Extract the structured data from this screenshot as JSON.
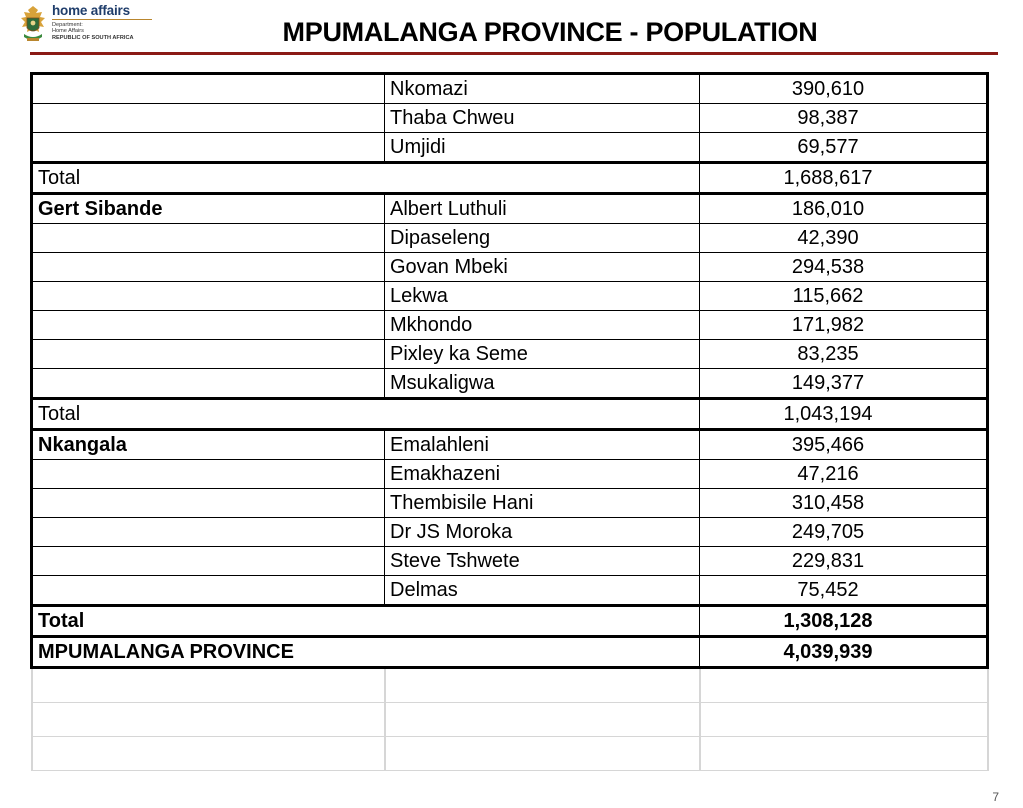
{
  "header": {
    "logo": {
      "name": "home affairs",
      "line1": "Department:",
      "line2": "Home Affairs",
      "line3": "REPUBLIC OF SOUTH AFRICA"
    },
    "title": "MPUMALANGA PROVINCE - POPULATION"
  },
  "table": {
    "rows": [
      {
        "district": "",
        "municipality": "Nkomazi",
        "population": "390,610"
      },
      {
        "district": "",
        "municipality": "Thaba Chweu",
        "population": "98,387"
      },
      {
        "district": "",
        "municipality": "Umjidi",
        "population": "69,577"
      },
      {
        "total_label": "Total",
        "population": "1,688,617"
      },
      {
        "district": "Gert Sibande",
        "municipality": "Albert Luthuli",
        "population": "186,010"
      },
      {
        "district": "",
        "municipality": "Dipaseleng",
        "population": "42,390"
      },
      {
        "district": "",
        "municipality": "Govan Mbeki",
        "population": "294,538"
      },
      {
        "district": "",
        "municipality": "Lekwa",
        "population": "115,662"
      },
      {
        "district": "",
        "municipality": "Mkhondo",
        "population": "171,982"
      },
      {
        "district": "",
        "municipality": "Pixley ka Seme",
        "population": "83,235"
      },
      {
        "district": "",
        "municipality": "Msukaligwa",
        "population": "149,377"
      },
      {
        "total_label": "Total",
        "population": "1,043,194"
      },
      {
        "district": "Nkangala",
        "municipality": "Emalahleni",
        "population": "395,466"
      },
      {
        "district": "",
        "municipality": "Emakhazeni",
        "population": "47,216"
      },
      {
        "district": "",
        "municipality": "Thembisile Hani",
        "population": "310,458"
      },
      {
        "district": "",
        "municipality": "Dr JS Moroka",
        "population": "249,705"
      },
      {
        "district": "",
        "municipality": "Steve Tshwete",
        "population": "229,831"
      },
      {
        "district": "",
        "municipality": "Delmas",
        "population": "75,452"
      },
      {
        "total_label": "Total",
        "population": "1,308,128"
      },
      {
        "total_label": "MPUMALANGA PROVINCE",
        "population": "4,039,939"
      }
    ]
  },
  "footer": {
    "page_number": "7"
  },
  "colors": {
    "title_rule": "#8a1a15",
    "logo_text": "#1f3d6b",
    "logo_gold": "#b9862e"
  }
}
